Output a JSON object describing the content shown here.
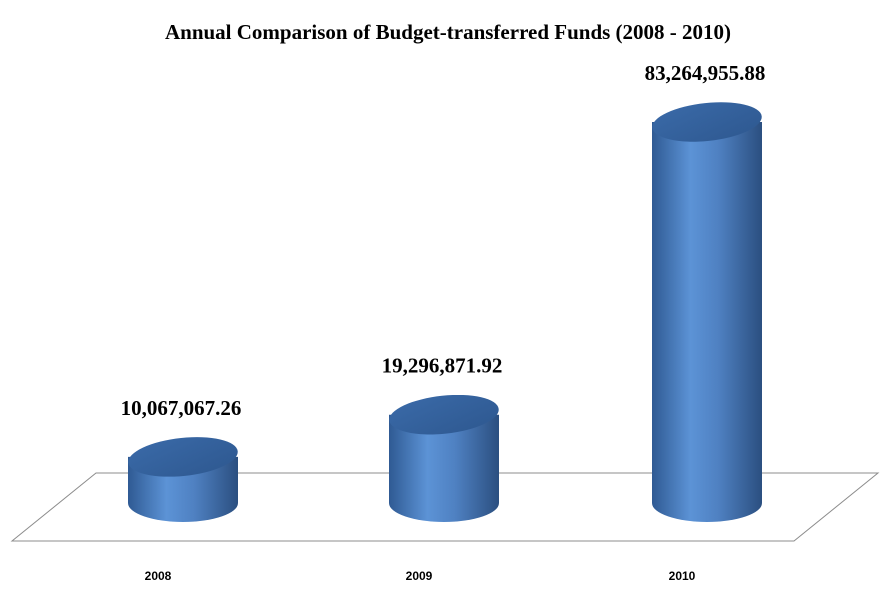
{
  "chart_data": {
    "type": "bar",
    "title": "Annual Comparison of Budget-transferred Funds (2008 - 2010)",
    "categories": [
      "2008",
      "2009",
      "2010"
    ],
    "values": [
      10067067.26,
      19296871.92,
      83264955.88
    ],
    "value_labels": [
      "10,067,067.26",
      "19,296,871.92",
      "83,264,955.88"
    ],
    "bar_shape": "cylinder",
    "bar_color": "#4F81BD",
    "floor_color": "#FFFFFF",
    "grid": false,
    "legend": "none"
  }
}
